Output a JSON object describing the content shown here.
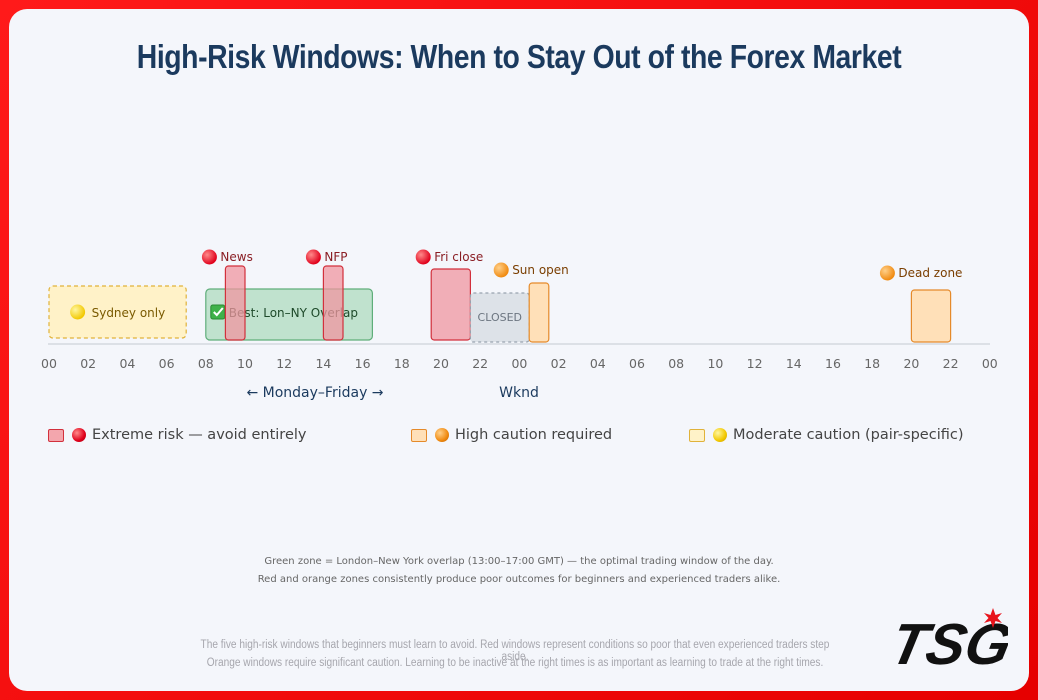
{
  "title": "High-Risk Windows: When to Stay Out of the Forex Market",
  "timeline": {
    "ticks": [
      "00",
      "02",
      "04",
      "06",
      "08",
      "10",
      "12",
      "14",
      "16",
      "18",
      "20",
      "22",
      "00",
      "02",
      "04",
      "06",
      "08",
      "10",
      "12",
      "14",
      "16",
      "18",
      "20",
      "22",
      "00"
    ],
    "weekday_label": "← Monday–Friday →",
    "weekend_label": "Wknd"
  },
  "zones": [
    {
      "id": "sydney",
      "label": "Sydney only",
      "start": 0,
      "end": 7,
      "level": "moderate",
      "icon": "yellow-dot-icon"
    },
    {
      "id": "overlap",
      "label": "Best: Lon–NY Overlap",
      "start": 8,
      "end": 16.5,
      "level": "best",
      "icon": "check-icon"
    },
    {
      "id": "news",
      "label": "News",
      "start": 9,
      "end": 10,
      "level": "extreme",
      "icon": "red-dot-icon"
    },
    {
      "id": "nfp",
      "label": "NFP",
      "start": 14,
      "end": 15,
      "level": "extreme",
      "icon": "red-dot-icon"
    },
    {
      "id": "fri-close",
      "label": "Fri close",
      "start": 19.5,
      "end": 21.5,
      "level": "extreme",
      "icon": "red-dot-icon"
    },
    {
      "id": "closed",
      "label": "CLOSED",
      "start": 21.5,
      "end": 24.5,
      "level": "closed",
      "icon": ""
    },
    {
      "id": "sun-open",
      "label": "Sun open",
      "start": 24.5,
      "end": 25.5,
      "level": "high",
      "icon": "orange-dot-icon"
    },
    {
      "id": "dead-zone",
      "label": "Dead zone",
      "start": 44,
      "end": 46,
      "level": "high",
      "icon": "orange-dot-icon"
    }
  ],
  "legend": [
    {
      "label": "Extreme risk — avoid entirely",
      "color": "#f3a6ad",
      "border": "#d2303c",
      "icon": "red-dot-icon"
    },
    {
      "label": "High caution required",
      "color": "#ffe0b8",
      "border": "#e58a2a",
      "icon": "orange-dot-icon"
    },
    {
      "label": "Moderate caution (pair-specific)",
      "color": "#fff2c8",
      "border": "#e0b23a",
      "icon": "yellow-dot-icon"
    }
  ],
  "notes": {
    "line1": "Green zone = London–New York overlap (13:00–17:00 GMT) — the optimal trading window of the day.",
    "line2": "Red and orange zones consistently produce poor outcomes for beginners and experienced traders alike."
  },
  "footer": {
    "line1": "The five high-risk windows that beginners must learn to avoid. Red windows represent conditions so poor that even experienced traders step aside.",
    "line2": "Orange windows require significant caution. Learning to be inactive at the right times is as important as learning to trade at the right times."
  },
  "logo_text": "TSG"
}
